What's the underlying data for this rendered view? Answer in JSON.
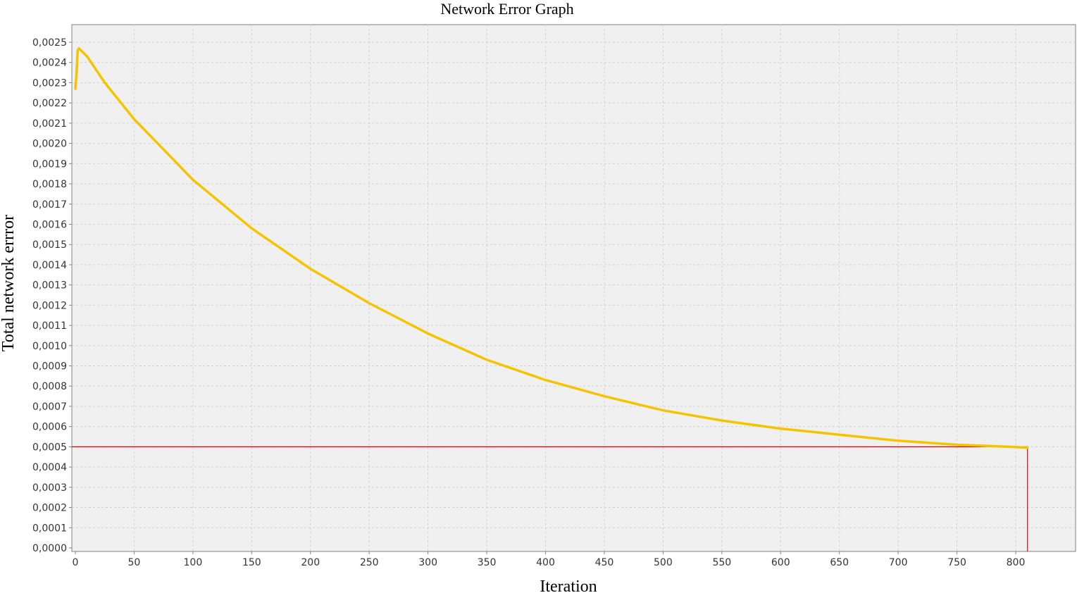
{
  "chart_data": {
    "type": "line",
    "title": "Network Error Graph",
    "xlabel": "Iteration",
    "ylabel": "Total network errror",
    "xlim": [
      0,
      845
    ],
    "ylim": [
      0,
      0.0025
    ],
    "grid": true,
    "x_ticks": [
      "0",
      "50",
      "100",
      "150",
      "200",
      "250",
      "300",
      "350",
      "400",
      "450",
      "500",
      "550",
      "600",
      "650",
      "700",
      "750",
      "800"
    ],
    "y_ticks": [
      "0,0000",
      "0,0001",
      "0,0002",
      "0,0003",
      "0,0004",
      "0,0005",
      "0,0006",
      "0,0007",
      "0,0008",
      "0,0009",
      "0,0010",
      "0,0011",
      "0,0012",
      "0,0013",
      "0,0014",
      "0,0015",
      "0,0016",
      "0,0017",
      "0,0018",
      "0,0019",
      "0,0020",
      "0,0021",
      "0,0022",
      "0,0023",
      "0,0024",
      "0,0025"
    ],
    "series": [
      {
        "color": "#f5c400",
        "x": [
          0,
          1,
          2,
          3,
          10,
          25,
          50,
          75,
          100,
          150,
          200,
          250,
          300,
          350,
          400,
          450,
          500,
          550,
          600,
          650,
          700,
          750,
          800,
          810
        ],
        "y": [
          0.00227,
          0.00235,
          0.00246,
          0.00247,
          0.00243,
          0.0023,
          0.00212,
          0.00197,
          0.00182,
          0.00158,
          0.00138,
          0.00121,
          0.00106,
          0.00093,
          0.00083,
          0.00075,
          0.00068,
          0.00063,
          0.00059,
          0.00056,
          0.00053,
          0.00051,
          0.000499,
          0.000495
        ]
      }
    ],
    "reference_lines": [
      {
        "orientation": "horizontal",
        "value": 0.0005,
        "color": "#e00000"
      },
      {
        "orientation": "vertical",
        "value": 810,
        "color": "#e00000"
      }
    ]
  },
  "colors": {
    "plot_background": "#f0f0f0",
    "grid": "#d2d2d2",
    "series": "#f5c400",
    "reference": "#e00000"
  }
}
